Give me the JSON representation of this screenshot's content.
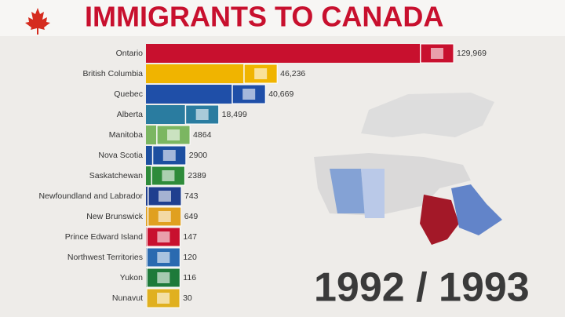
{
  "chart_data": {
    "type": "bar",
    "orientation": "horizontal",
    "title": "IMMIGRANTS TO CANADA",
    "period": "1992 / 1993",
    "categories": [
      "Ontario",
      "British Columbia",
      "Quebec",
      "Alberta",
      "Manitoba",
      "Nova Scotia",
      "Saskatchewan",
      "Newfoundland and Labrador",
      "New Brunswick",
      "Prince Edward Island",
      "Northwest Territories",
      "Yukon",
      "Nunavut"
    ],
    "values": [
      129969,
      46236,
      40669,
      18499,
      4864,
      2900,
      2389,
      743,
      649,
      147,
      120,
      116,
      30
    ],
    "value_labels": [
      "129,969",
      "46,236",
      "40,669",
      "18,499",
      "4864",
      "2900",
      "2389",
      "743",
      "649",
      "147",
      "120",
      "116",
      "30"
    ],
    "colors": [
      "#c8102e",
      "#f0b400",
      "#1f4fa8",
      "#2a7ca0",
      "#7bb661",
      "#1c4fa0",
      "#2e8b3a",
      "#1f3f8f",
      "#e0a020",
      "#c8102e",
      "#2a6ab0",
      "#1e7a3a",
      "#e0b020"
    ]
  }
}
